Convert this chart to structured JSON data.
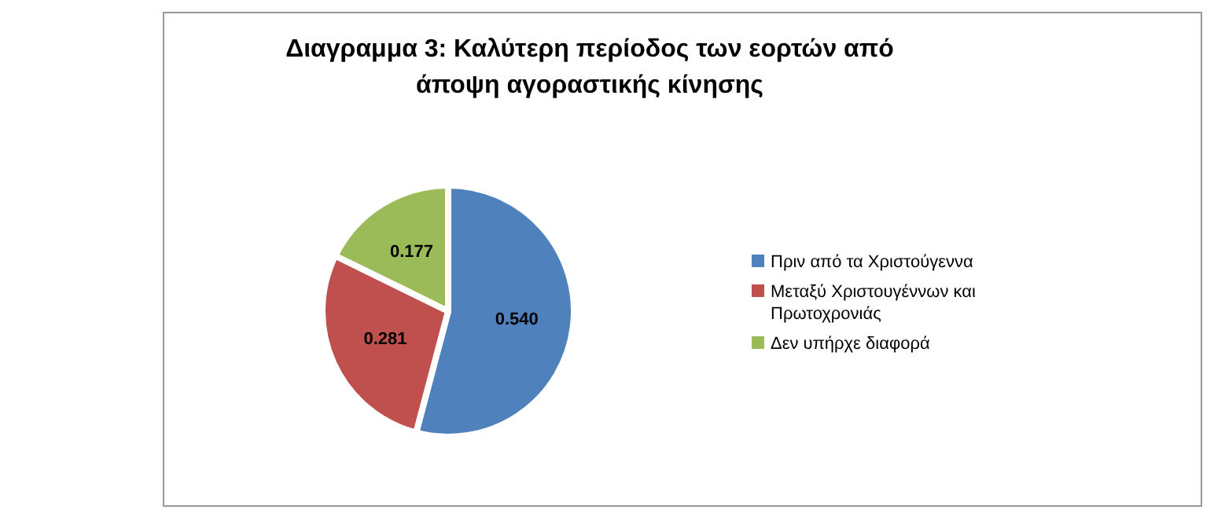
{
  "chart_data": {
    "type": "pie",
    "title": "Διαγραμμα 3: Καλύτερη περίοδος των εορτών από άποψη αγοραστικής κίνησης",
    "categories": [
      "Πριν από τα Χριστούγεννα",
      "Μεταξύ Χριστουγέννων και Πρωτοχρονιάς",
      "Δεν υπήρχε διαφορά"
    ],
    "values": [
      0.54,
      0.281,
      0.177
    ],
    "value_labels": [
      "0.540",
      "0.281",
      "0.177"
    ],
    "colors": [
      "#4f81bd",
      "#c0504d",
      "#9bbb59"
    ],
    "data_labels": true,
    "legend": "right"
  }
}
